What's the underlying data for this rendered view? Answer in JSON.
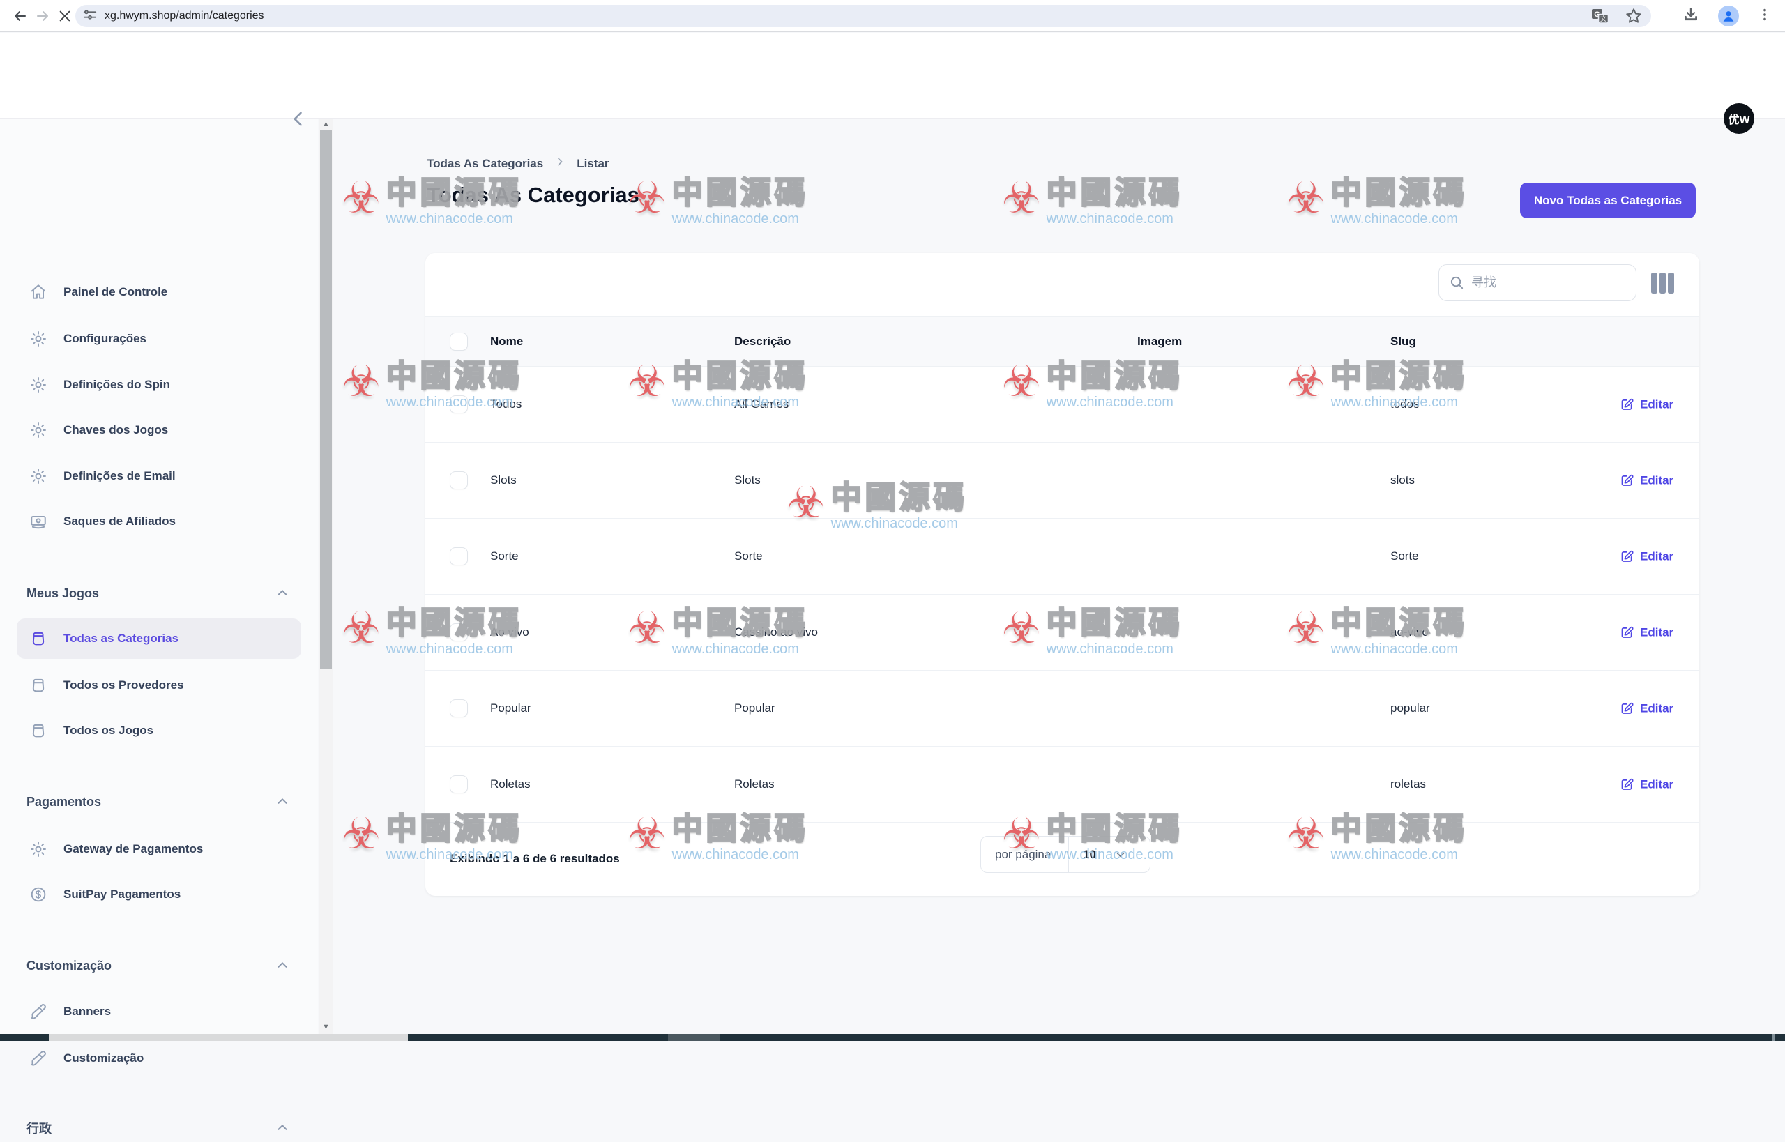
{
  "browser": {
    "url": "xg.hwym.shop/admin/categories",
    "icons": [
      "back-icon",
      "forward-icon",
      "stop-icon",
      "site-info-icon",
      "translate-icon",
      "bookmark-star-icon",
      "download-icon",
      "profile-icon",
      "menu-dots-icon"
    ]
  },
  "header": {
    "avatar_label": "优W",
    "back_icon": "chevron-left-icon"
  },
  "sidebar": {
    "items_top": [
      {
        "label": "Painel de Controle",
        "icon": "home-icon"
      },
      {
        "label": "Configurações",
        "icon": "gear-icon"
      },
      {
        "label": "Definições do Spin",
        "icon": "gear-icon"
      },
      {
        "label": "Chaves dos Jogos",
        "icon": "gear-icon"
      },
      {
        "label": "Definições de Email",
        "icon": "gear-icon"
      },
      {
        "label": "Saques de Afiliados",
        "icon": "banknote-icon"
      }
    ],
    "sections": [
      {
        "title": "Meus Jogos",
        "items": [
          {
            "label": "Todas as Categorias",
            "icon": "basket-icon",
            "active": true
          },
          {
            "label": "Todos os Provedores",
            "icon": "basket-icon"
          },
          {
            "label": "Todos os Jogos",
            "icon": "basket-icon"
          }
        ]
      },
      {
        "title": "Pagamentos",
        "items": [
          {
            "label": "Gateway de Pagamentos",
            "icon": "gear-icon"
          },
          {
            "label": "SuitPay Pagamentos",
            "icon": "dollar-icon"
          }
        ]
      },
      {
        "title": "Customização",
        "items": [
          {
            "label": "Banners",
            "icon": "brush-icon"
          },
          {
            "label": "Customização",
            "icon": "brush-icon"
          }
        ]
      },
      {
        "title": "行政",
        "items": []
      }
    ]
  },
  "main": {
    "breadcrumb": [
      "Todas As Categorias",
      "Listar"
    ],
    "title": "Todas As Categorias",
    "new_button": "Novo Todas as Categorias"
  },
  "table": {
    "search_placeholder": "寻找",
    "columns": [
      "Nome",
      "Descrição",
      "Imagem",
      "Slug"
    ],
    "rows": [
      {
        "nome": "Todos",
        "descricao": "All Games",
        "imagem": "",
        "slug": "todos",
        "action": "Editar"
      },
      {
        "nome": "Slots",
        "descricao": "Slots",
        "imagem": "",
        "slug": "slots",
        "action": "Editar"
      },
      {
        "nome": "Sorte",
        "descricao": "Sorte",
        "imagem": "",
        "slug": "Sorte",
        "action": "Editar"
      },
      {
        "nome": "Ao vivo",
        "descricao": "Cassino ao vivo",
        "imagem": "",
        "slug": "ao-vivo",
        "action": "Editar"
      },
      {
        "nome": "Popular",
        "descricao": "Popular",
        "imagem": "",
        "slug": "popular",
        "action": "Editar"
      },
      {
        "nome": "Roletas",
        "descricao": "Roletas",
        "imagem": "",
        "slug": "roletas",
        "action": "Editar"
      }
    ],
    "pagination": {
      "summary": "Exibindo 1 a 6 de 6 resultados",
      "per_page_label": "por página",
      "per_page_value": "10"
    }
  },
  "watermark": {
    "logo": "☣",
    "text": "中國源碼",
    "url": "www.chinacode.com"
  },
  "colors": {
    "accent": "#5b4ee4",
    "link": "#4f46e5",
    "active_bg": "#ededf2",
    "chrome_pill": "#e9edf6"
  }
}
